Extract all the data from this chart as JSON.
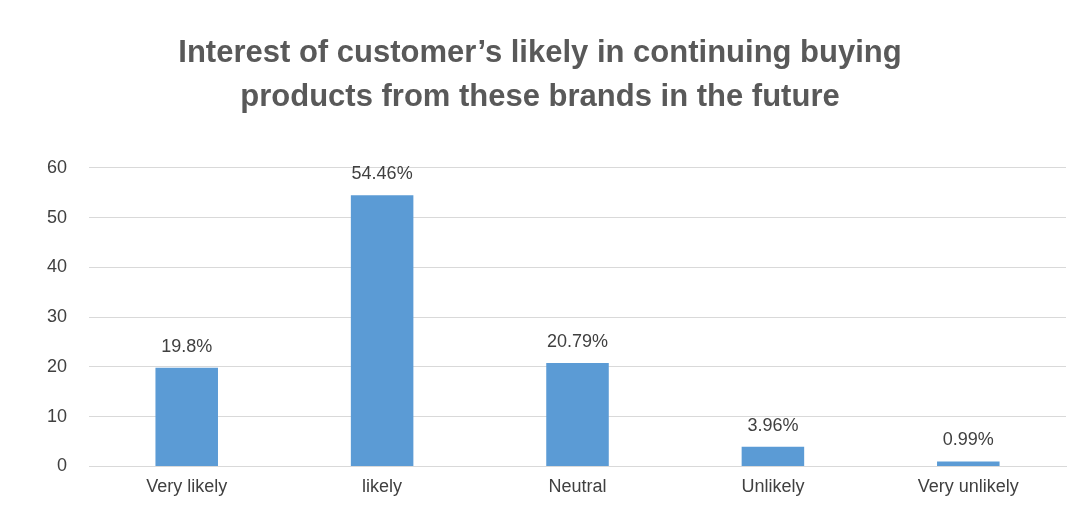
{
  "chart_data": {
    "type": "bar",
    "title": "Interest of customer’s likely in continuing buying products from these brands in the future",
    "categories": [
      "Very likely",
      "likely",
      "Neutral",
      "Unlikely",
      "Very unlikely"
    ],
    "values": [
      19.8,
      54.46,
      20.79,
      3.96,
      0.99
    ],
    "value_labels": [
      "19.8%",
      "54.46%",
      "20.79%",
      "3.96%",
      "0.99%"
    ],
    "color": "#5b9bd5",
    "ylim": [
      0,
      60
    ],
    "yticks": [
      0,
      10,
      20,
      30,
      40,
      50,
      60
    ],
    "grid": "y",
    "legend": false
  }
}
